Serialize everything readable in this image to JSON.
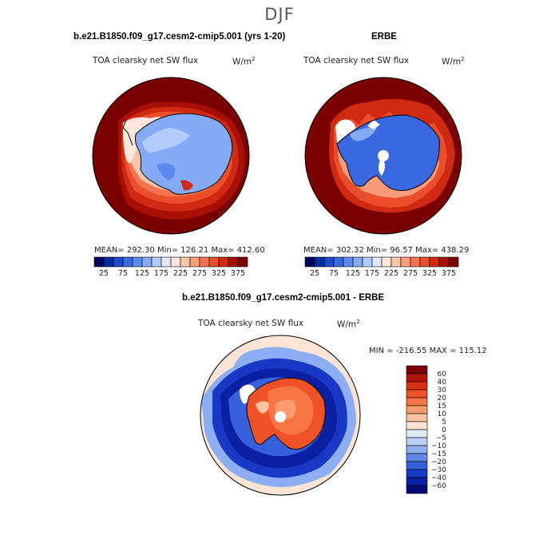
{
  "figure": {
    "season": "DJF"
  },
  "panels": {
    "model": {
      "title": "b.e21.B1850.f09_g17.cesm2-cmip5.001 (yrs 1-20)",
      "field": "TOA clearsky net SW flux",
      "units": "W/m",
      "units_sup": "2",
      "stats": "MEAN= 292.30   Min= 126.21   Max= 412.60"
    },
    "obs": {
      "title": "ERBE",
      "field": "TOA clearsky net SW flux",
      "units": "W/m",
      "units_sup": "2",
      "stats": "MEAN= 302.32   Min=  96.57   Max= 438.29"
    },
    "diff": {
      "title": "b.e21.B1850.f09_g17.cesm2-cmip5.001 - ERBE",
      "field": "TOA clearsky net SW flux",
      "units": "W/m",
      "units_sup": "2",
      "stats": "MIN = -216.55 MAX = 115.12"
    }
  },
  "chart_data": [
    {
      "type": "heatmap",
      "map": "south-polar-stereographic",
      "title": "b.e21.B1850.f09_g17.cesm2-cmip5.001 (yrs 1-20)",
      "variable": "TOA clearsky net SW flux",
      "units": "W/m2",
      "mean": 292.3,
      "min": 126.21,
      "max": 412.6,
      "colorbar": {
        "orientation": "horizontal",
        "tick_labels": [
          "25",
          "75",
          "125",
          "175",
          "225",
          "275",
          "325",
          "375"
        ],
        "colors": [
          "#00035c",
          "#0a2aa3",
          "#1f48c8",
          "#3a68e0",
          "#5d8af0",
          "#86abf6",
          "#b3ccf9",
          "#dfe9fb",
          "#fde6dc",
          "#fbc3aa",
          "#f89b78",
          "#f3744f",
          "#ea4e2c",
          "#d12a13",
          "#a80f05",
          "#7b0000"
        ]
      }
    },
    {
      "type": "heatmap",
      "map": "south-polar-stereographic",
      "title": "ERBE",
      "variable": "TOA clearsky net SW flux",
      "units": "W/m2",
      "mean": 302.32,
      "min": 96.57,
      "max": 438.29,
      "colorbar": {
        "orientation": "horizontal",
        "tick_labels": [
          "25",
          "75",
          "125",
          "175",
          "225",
          "275",
          "325",
          "375"
        ],
        "colors": [
          "#00035c",
          "#0a2aa3",
          "#1f48c8",
          "#3a68e0",
          "#5d8af0",
          "#86abf6",
          "#b3ccf9",
          "#dfe9fb",
          "#fde6dc",
          "#fbc3aa",
          "#f89b78",
          "#f3744f",
          "#ea4e2c",
          "#d12a13",
          "#a80f05",
          "#7b0000"
        ]
      }
    },
    {
      "type": "heatmap",
      "map": "south-polar-stereographic",
      "title": "b.e21.B1850.f09_g17.cesm2-cmip5.001 - ERBE",
      "variable": "TOA clearsky net SW flux",
      "units": "W/m2",
      "min": -216.55,
      "max": 115.12,
      "colorbar": {
        "orientation": "vertical",
        "tick_labels": [
          "60",
          "40",
          "30",
          "20",
          "15",
          "10",
          "5",
          "0",
          "−5",
          "−10",
          "−15",
          "−20",
          "−30",
          "−40",
          "−60"
        ],
        "colors": [
          "#7b0000",
          "#b21606",
          "#d9300f",
          "#ef5226",
          "#f77643",
          "#fb9c6f",
          "#fcc3a2",
          "#fde4d4",
          "#e0ebfb",
          "#b9cff8",
          "#8daef3",
          "#5f88ea",
          "#3760dc",
          "#1838c5",
          "#0a1fa2",
          "#020b78"
        ]
      }
    }
  ]
}
